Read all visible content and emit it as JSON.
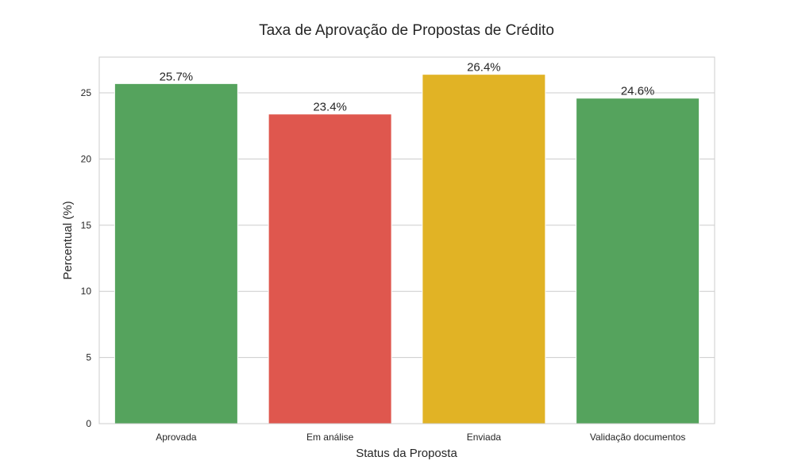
{
  "chart_data": {
    "type": "bar",
    "title": "Taxa de Aprovação de Propostas de Crédito",
    "xlabel": "Status da Proposta",
    "ylabel": "Percentual (%)",
    "categories": [
      "Aprovada",
      "Em análise",
      "Enviada",
      "Validação documentos"
    ],
    "values": [
      25.7,
      23.4,
      26.4,
      24.6
    ],
    "data_labels": [
      "25.7%",
      "23.4%",
      "26.4%",
      "24.6%"
    ],
    "colors": [
      "#55a35d",
      "#df574e",
      "#e1b325",
      "#55a35d"
    ],
    "ylim": [
      0,
      27.7
    ],
    "yticks": [
      0,
      5,
      10,
      15,
      20,
      25
    ],
    "grid": "horizontal"
  }
}
